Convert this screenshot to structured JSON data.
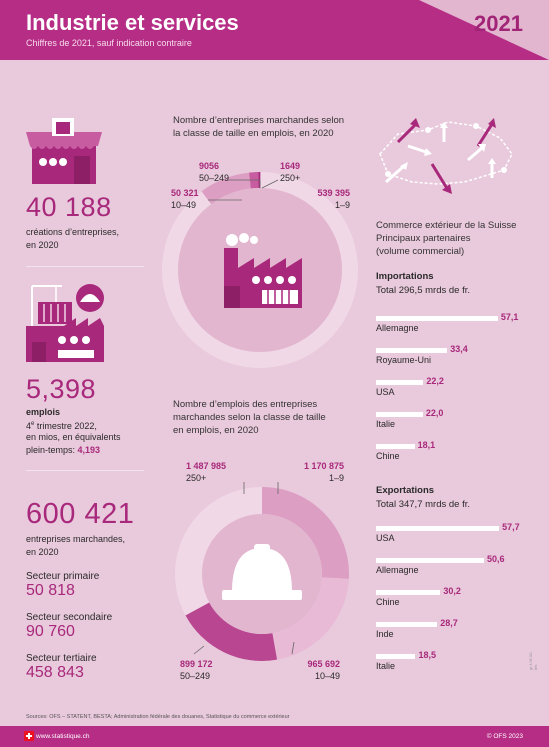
{
  "header": {
    "title": "Industrie et services",
    "subtitle": "Chiffres de 2021, sauf indication contraire",
    "year": "2021"
  },
  "creations": {
    "value": "40 188",
    "label_line1": "créations d’entreprises,",
    "label_line2": "en 2020"
  },
  "emplois": {
    "value": "5,398",
    "label": "emplois",
    "line1_sup": "e",
    "line1_num": "4",
    "line1_rest": " trimestre 2022,",
    "line2": "en mios, en équivalents",
    "line3_prefix": "plein-temps: ",
    "line3_value": "4,193"
  },
  "entreprises": {
    "value": "600 421",
    "label_line1": "entreprises marchandes,",
    "label_line2": "en 2020",
    "sectors": [
      {
        "name": "Secteur primaire",
        "value": "50 818"
      },
      {
        "name": "Secteur secondaire",
        "value": "90 760"
      },
      {
        "name": "Secteur tertiaire",
        "value": "458 843"
      }
    ]
  },
  "chart_data": [
    {
      "type": "pie",
      "title_lines": [
        "Nombre d’entreprises marchandes selon",
        "la classe de taille en emplois, en 2020"
      ],
      "slices": [
        {
          "label": "1–9",
          "value": 539395,
          "display": "539 395",
          "color": "#f1d8e7"
        },
        {
          "label": "10–49",
          "value": 50321,
          "display": "50 321",
          "color": "#dc9ec3"
        },
        {
          "label": "50–249",
          "value": 9056,
          "display": "9056",
          "color": "#c75da0"
        },
        {
          "label": "250+",
          "value": 1649,
          "display": "1649",
          "color": "#a8297b"
        }
      ]
    },
    {
      "type": "pie",
      "title_lines": [
        "Nombre d’emplois des entreprises",
        "marchandes selon la classe de taille",
        "en emplois, en 2020"
      ],
      "slices": [
        {
          "label": "1–9",
          "value": 1170875,
          "display": "1 170 875",
          "color": "#dc9ec3"
        },
        {
          "label": "10–49",
          "value": 965692,
          "display": "965 692",
          "color": "#e8bad5"
        },
        {
          "label": "50–249",
          "value": 899172,
          "display": "899 172",
          "color": "#b94690"
        },
        {
          "label": "250+",
          "value": 1487985,
          "display": "1 487 985",
          "color": "#f1d8e7"
        }
      ]
    },
    {
      "type": "bar",
      "title_lines": [
        "Commerce extérieur de la Suisse",
        "Principaux partenaires",
        "(volume commercial)"
      ],
      "groups": [
        {
          "name": "Importations",
          "total": "Total 296,5 mrds de fr.",
          "categories": [
            "Allemagne",
            "Royaume-Uni",
            "USA",
            "Italie",
            "Chine"
          ],
          "values": [
            57.1,
            33.4,
            22.2,
            22.0,
            18.1
          ],
          "display": [
            "57,1",
            "33,4",
            "22,2",
            "22,0",
            "18,1"
          ]
        },
        {
          "name": "Exportations",
          "total": "Total 347,7 mrds de fr.",
          "categories": [
            "USA",
            "Allemagne",
            "Chine",
            "Inde",
            "Italie"
          ],
          "values": [
            57.7,
            50.6,
            30.2,
            28.7,
            18.5
          ],
          "display": [
            "57,7",
            "50,6",
            "30,2",
            "28,7",
            "18,5"
          ]
        }
      ],
      "xlim": [
        0,
        60
      ]
    }
  ],
  "sources": "Sources: OFS – STATENT, BESTA; Administration fédérale des douanes, Statistique du commerce extérieur",
  "footer": {
    "url": "www.statistique.ch",
    "copyright": "© OFS 2023"
  },
  "vertical_code": "gr-f-06.00-bfs",
  "colors": {
    "primary": "#b62d86",
    "background": "#e9c9dc",
    "accent_text": "#a8297b"
  }
}
